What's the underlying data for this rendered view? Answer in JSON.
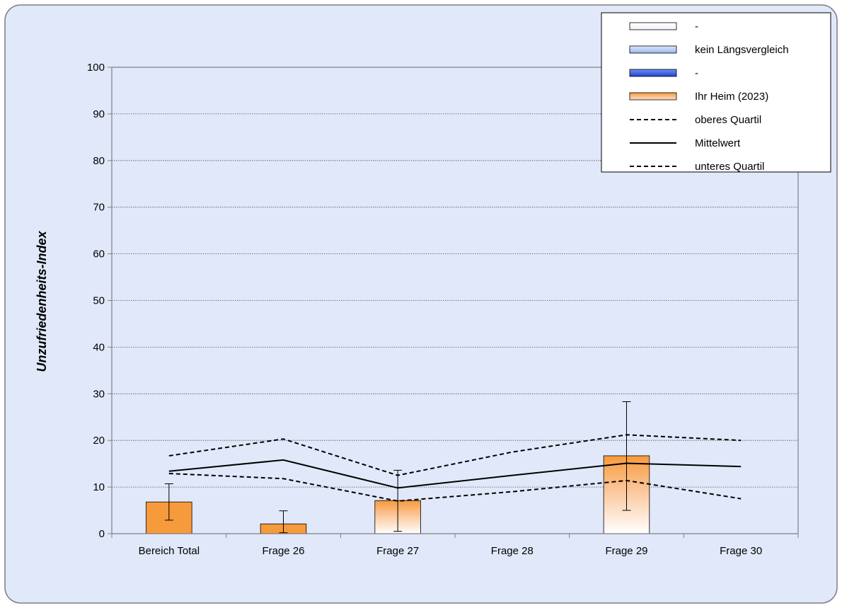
{
  "chart_data": {
    "type": "bar",
    "ylabel": "Unzufriedenheits-Index",
    "xlabel": "",
    "ylim": [
      0,
      100
    ],
    "yticks": [
      0,
      10,
      20,
      30,
      40,
      50,
      60,
      70,
      80,
      90,
      100
    ],
    "grid": true,
    "legend_position": "top-right",
    "categories": [
      "Bereich Total",
      "Frage 26",
      "Frage 27",
      "Frage 28",
      "Frage 29",
      "Frage 30"
    ],
    "bars": {
      "name": "Ihr Heim  (2023)",
      "values": [
        6.8,
        2.1,
        7.1,
        0,
        16.7,
        0
      ],
      "styles": [
        "solid",
        "solid",
        "gradient",
        "none",
        "gradient",
        "none"
      ],
      "error_low": [
        2.9,
        0.2,
        0.5,
        null,
        5.0,
        null
      ],
      "error_high": [
        10.7,
        4.9,
        13.6,
        null,
        28.3,
        null
      ]
    },
    "lines": [
      {
        "name": "oberes Quartil",
        "style": "dashed",
        "values": [
          16.7,
          20.3,
          12.5,
          17.5,
          21.2,
          20.0
        ]
      },
      {
        "name": "Mittelwert",
        "style": "solid",
        "values": [
          13.4,
          15.8,
          9.8,
          12.5,
          15.1,
          14.4
        ]
      },
      {
        "name": "unteres Quartil",
        "style": "dashed",
        "values": [
          12.9,
          11.8,
          7.0,
          9.0,
          11.4,
          7.5
        ]
      }
    ],
    "legend": [
      {
        "label": "-",
        "kind": "bar",
        "swatch": "white"
      },
      {
        "label": "kein Längsvergleich",
        "kind": "bar",
        "swatch": "lightblue"
      },
      {
        "label": "-",
        "kind": "bar",
        "swatch": "blue"
      },
      {
        "label": "Ihr Heim  (2023)",
        "kind": "bar",
        "swatch": "orange"
      },
      {
        "label": "oberes Quartil",
        "kind": "line",
        "swatch": "dashed"
      },
      {
        "label": "Mittelwert",
        "kind": "line",
        "swatch": "solid"
      },
      {
        "label": "unteres Quartil",
        "kind": "line",
        "swatch": "dashed"
      }
    ]
  },
  "colors": {
    "background": "#e1e8fa",
    "bar_orange": "#f79a3c",
    "bar_orange_light": "#fcd2b0",
    "light_blue": "#a9c3ef",
    "dark_blue": "#2f59e0",
    "grid": "#555555",
    "axis": "#808080"
  }
}
